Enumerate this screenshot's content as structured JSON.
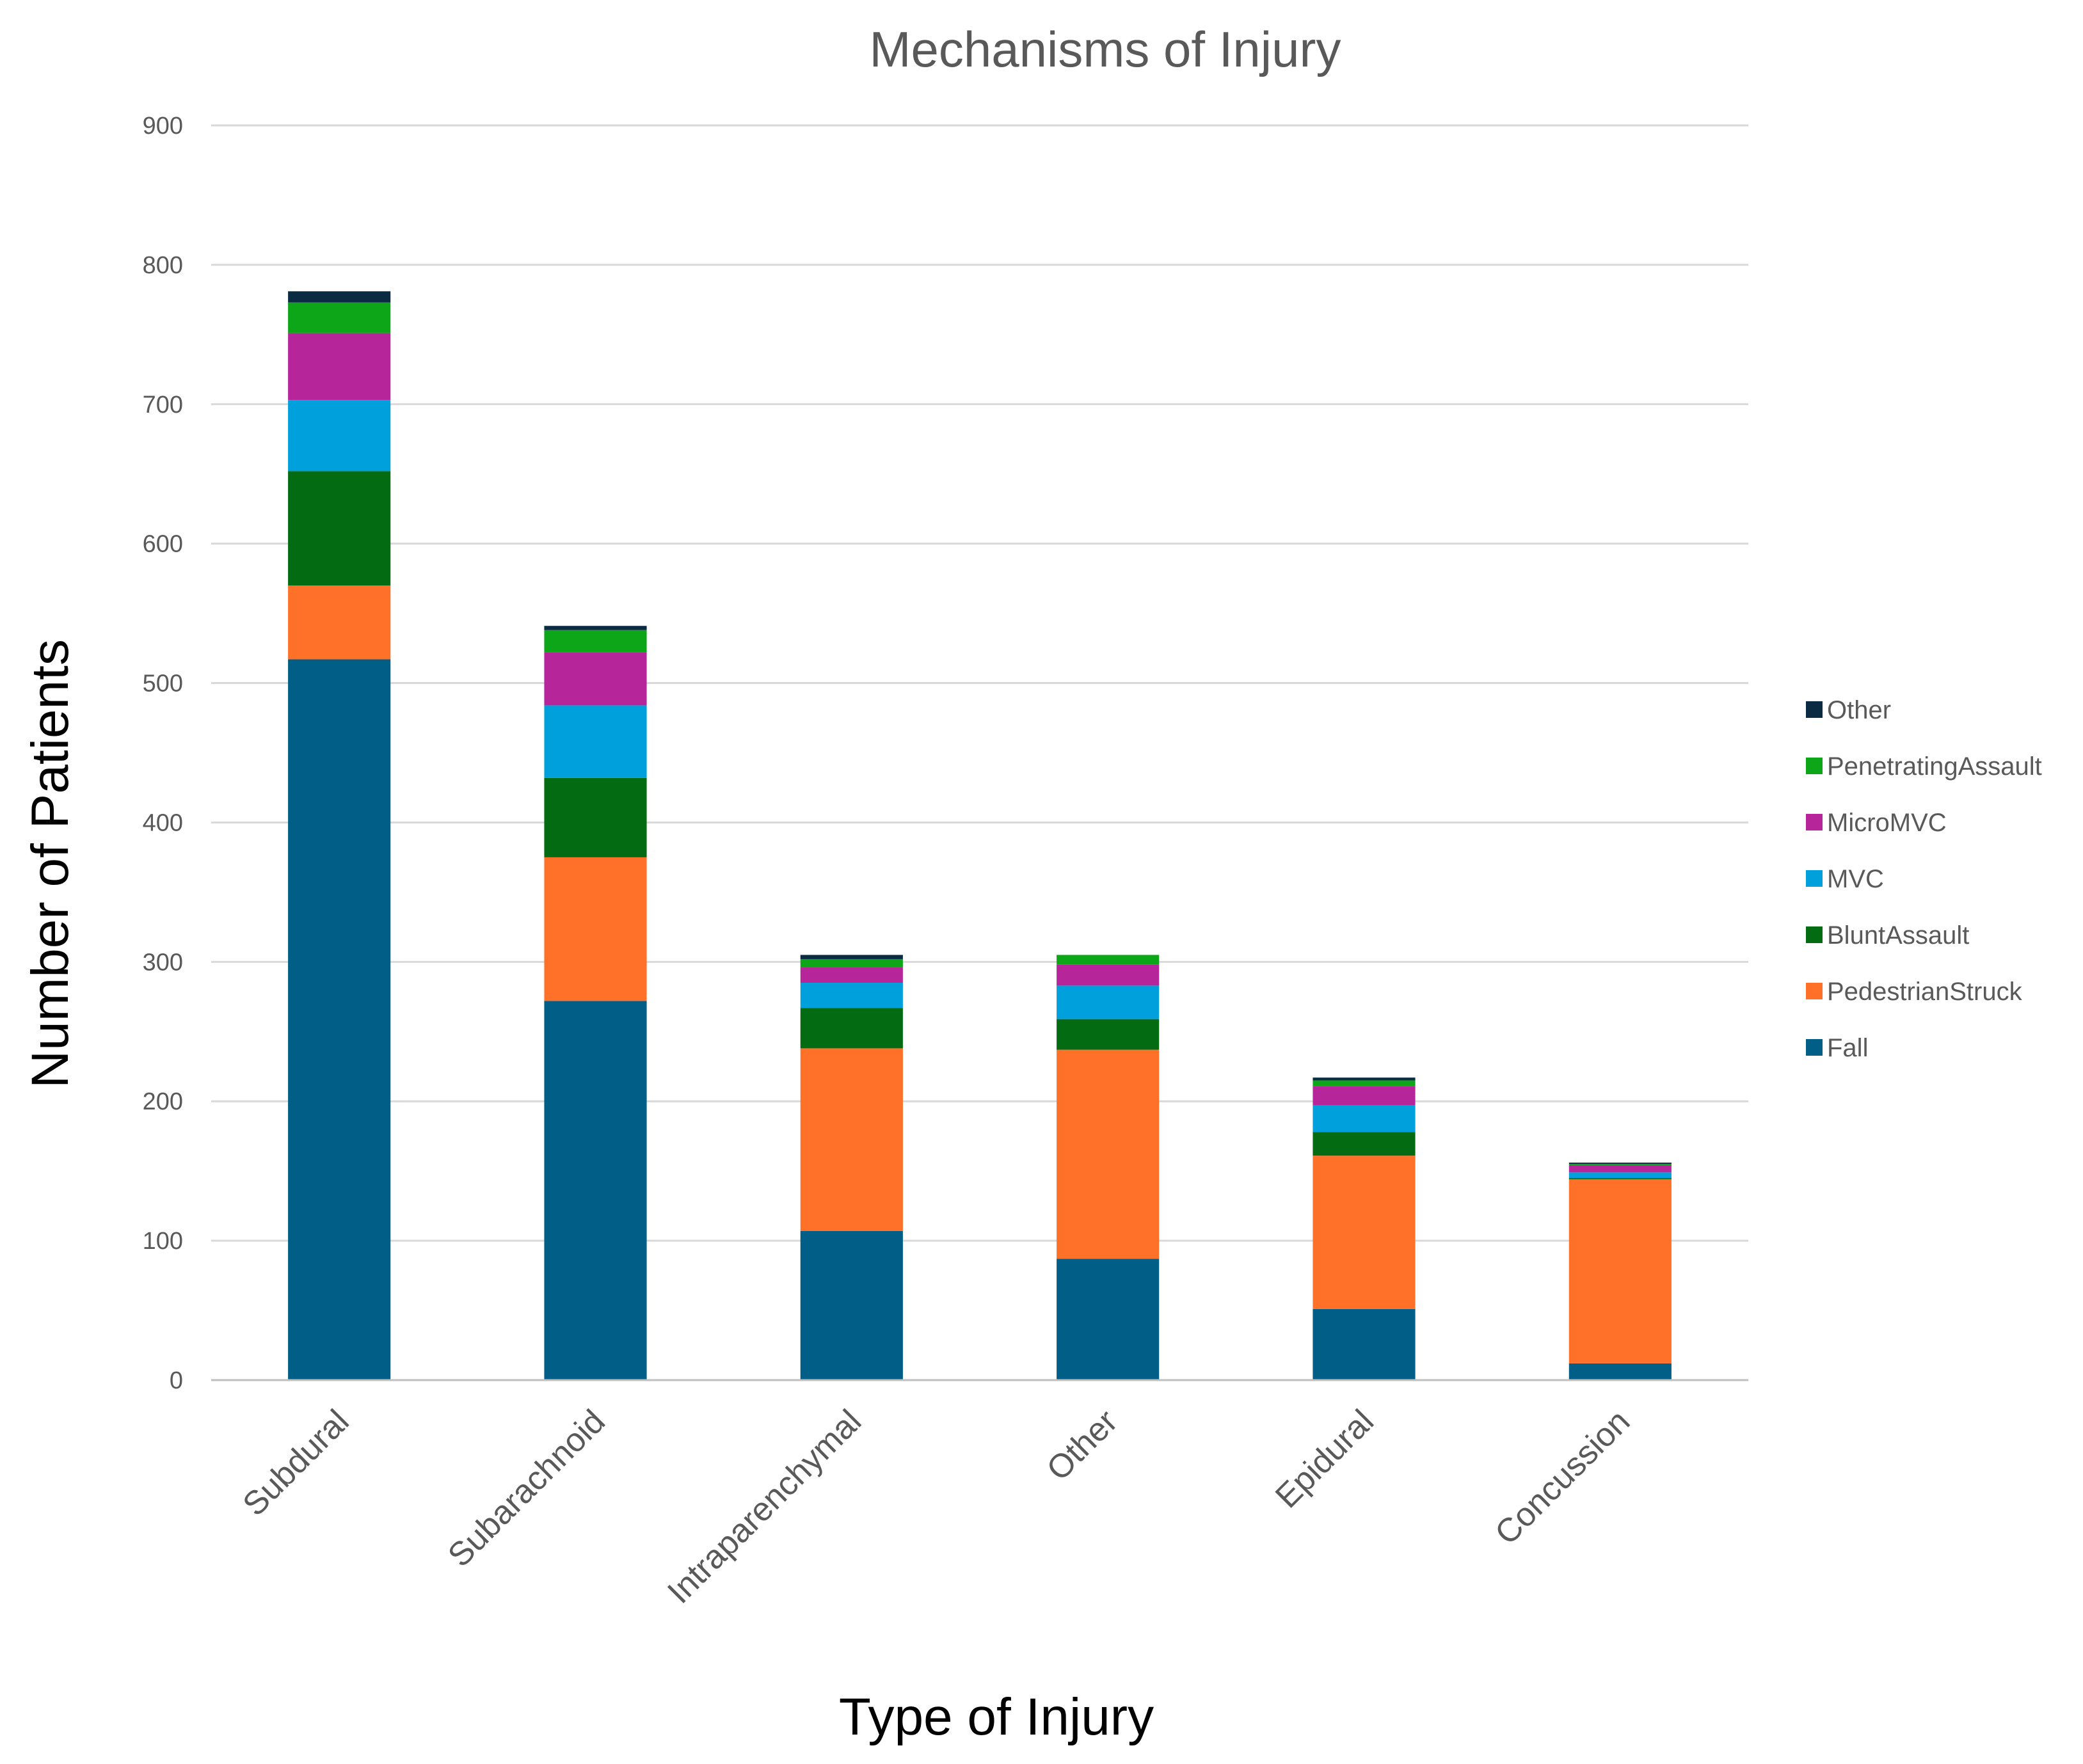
{
  "chart_data": {
    "type": "bar",
    "stacked": true,
    "title": "Mechanisms of Injury",
    "xlabel": "Type of Injury",
    "ylabel": "Number of Patients",
    "ylim": [
      0,
      900
    ],
    "yticks": [
      "0",
      "100",
      "200",
      "300",
      "400",
      "500",
      "600",
      "700",
      "800",
      "900"
    ],
    "grid": true,
    "legend_position": "right",
    "categories": [
      "Subdural",
      "Subarachnoid",
      "Intraparenchymal",
      "Other",
      "Epidural",
      "Concussion"
    ],
    "series": [
      {
        "name": "Fall",
        "color": "#005e87",
        "values": [
          517,
          272,
          107,
          87,
          51,
          12
        ]
      },
      {
        "name": "PedestrianStruck",
        "color": "#ff7029",
        "values": [
          53,
          103,
          131,
          150,
          110,
          132
        ]
      },
      {
        "name": "BluntAssault",
        "color": "#036b11",
        "values": [
          82,
          57,
          29,
          22,
          17,
          1
        ]
      },
      {
        "name": "MVC",
        "color": "#00a0dc",
        "values": [
          51,
          52,
          18,
          24,
          19,
          4
        ]
      },
      {
        "name": "MicroMVC",
        "color": "#b7259a",
        "values": [
          48,
          38,
          11,
          15,
          14,
          5
        ]
      },
      {
        "name": "PenetratingAssault",
        "color": "#0da619",
        "values": [
          22,
          16,
          6,
          7,
          4,
          1
        ]
      },
      {
        "name": "Other",
        "color": "#0b2b43",
        "values": [
          8,
          3,
          3,
          0,
          2,
          1
        ]
      }
    ]
  }
}
